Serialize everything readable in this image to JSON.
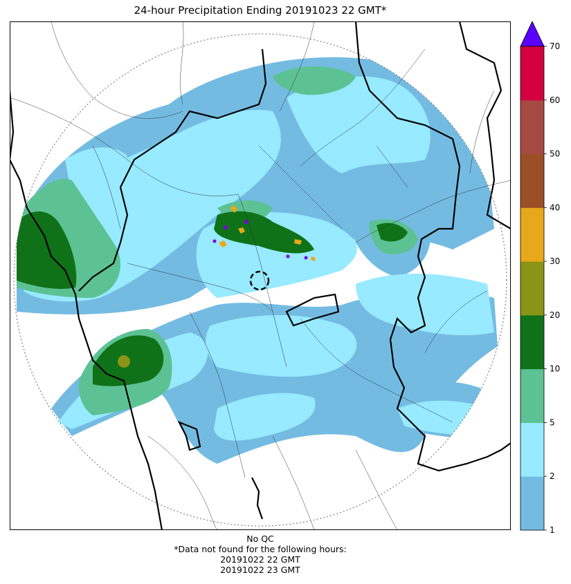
{
  "title": "24-hour Precipitation Ending 20191023 22 GMT*",
  "footer": {
    "qc": "No QC",
    "note": "*Data not found for the following hours:",
    "missing_hours": [
      "20191022 22 GMT",
      "20191022 23 GMT"
    ]
  },
  "colorbar": {
    "levels": [
      "1",
      "2",
      "5",
      "10",
      "20",
      "30",
      "40",
      "50",
      "60",
      "70"
    ],
    "colors": [
      "#74bbe2",
      "#97eaff",
      "#5cc294",
      "#0f7218",
      "#8a9416",
      "#e7a91b",
      "#9a4f27",
      "#a64a44",
      "#d3003f"
    ],
    "extend_color": "#5a00ff"
  },
  "colors": {
    "light_blue": "#74bbe2",
    "cyan": "#97eaff",
    "light_green": "#5cc294",
    "dark_green": "#0f7218",
    "olive": "#8a9416",
    "orange": "#e7a91b",
    "purple": "#7a00e0",
    "border": "#000000",
    "range_ring": "#888888"
  }
}
